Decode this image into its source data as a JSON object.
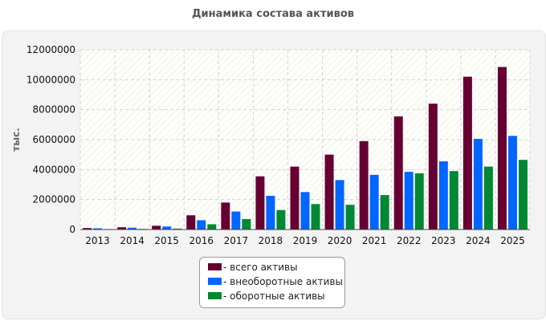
{
  "chart_data": {
    "type": "bar",
    "title": "Динамика состава активов",
    "xlabel": "",
    "ylabel": "тыс.",
    "ylim": [
      0,
      12000000
    ],
    "yticks": [
      0,
      2000000,
      4000000,
      6000000,
      8000000,
      10000000,
      12000000
    ],
    "grid": true,
    "legend_position": "bottom-center",
    "categories": [
      "2013",
      "2014",
      "2015",
      "2016",
      "2017",
      "2018",
      "2019",
      "2020",
      "2021",
      "2022",
      "2023",
      "2024",
      "2025"
    ],
    "series": [
      {
        "name": "- всего активы",
        "color": "#660033",
        "values": [
          100000,
          150000,
          250000,
          950000,
          1800000,
          3550000,
          4200000,
          5000000,
          5900000,
          7550000,
          8400000,
          10200000,
          10850000
        ]
      },
      {
        "name": "- внеоборотные активы",
        "color": "#0066ff",
        "values": [
          80000,
          120000,
          200000,
          620000,
          1200000,
          2250000,
          2500000,
          3300000,
          3650000,
          3850000,
          4550000,
          6050000,
          6250000
        ]
      },
      {
        "name": "- оборотные активы",
        "color": "#008833",
        "values": [
          30000,
          40000,
          60000,
          350000,
          700000,
          1300000,
          1700000,
          1650000,
          2300000,
          3750000,
          3900000,
          4200000,
          4650000
        ]
      }
    ]
  }
}
